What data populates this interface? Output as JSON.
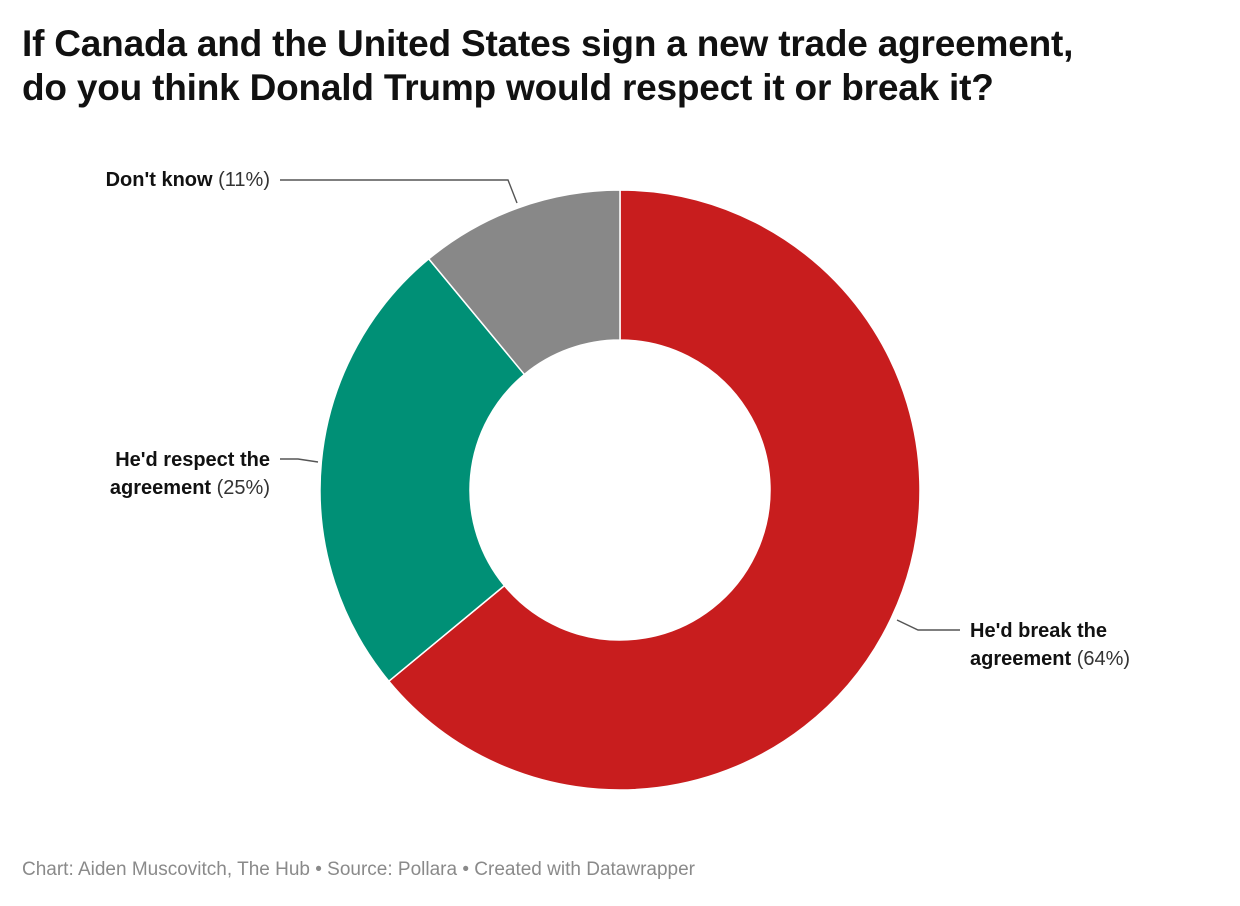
{
  "header": {
    "title_line1": "If Canada and the United States sign a new trade agreement,",
    "title_line2": "do you think Donald Trump would respect it or break it?"
  },
  "footer": {
    "text": "Chart: Aiden Muscovitch, The Hub • Source: Pollara • Created with Datawrapper"
  },
  "chart_data": {
    "type": "pie",
    "donut": true,
    "title": "If Canada and the United States sign a new trade agreement, do you think Donald Trump would respect it or break it?",
    "legend": "none",
    "slices": [
      {
        "label_line1": "He'd break the",
        "label_line2": "agreement",
        "pct_text": "(64%)",
        "value": 64,
        "color": "#c81d1e"
      },
      {
        "label_line1": "He'd respect the",
        "label_line2": "agreement",
        "pct_text": "(25%)",
        "value": 25,
        "color": "#009076"
      },
      {
        "label_line1": "Don't know",
        "label_line2": "",
        "pct_text": "(11%)",
        "value": 11,
        "color": "#888888"
      }
    ]
  }
}
